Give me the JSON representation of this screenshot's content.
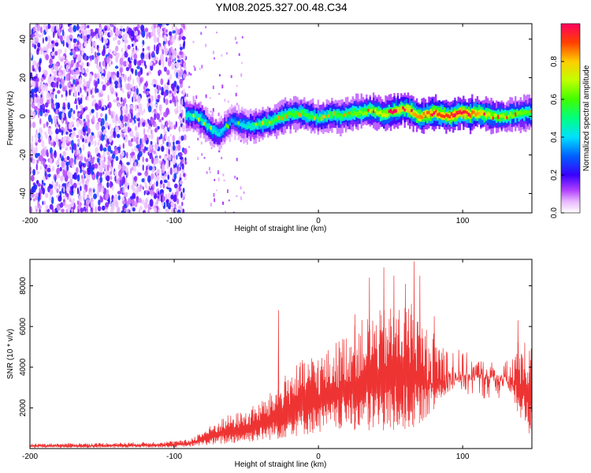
{
  "title": "YM08.2025.327.00.48.C34",
  "chart_data": [
    {
      "type": "heatmap",
      "xlabel": "Height of straight line (km)",
      "ylabel": "Frequency (Hz)",
      "xlim": [
        -200,
        148
      ],
      "ylim": [
        -50,
        48
      ],
      "xticks": [
        -200,
        -100,
        0,
        100
      ],
      "yticks": [
        -40,
        -20,
        0,
        20,
        40
      ],
      "noise_region_x": [
        -200,
        -92
      ],
      "colorbar": {
        "label": "Normalized spectral amplitude",
        "range": [
          0,
          1
        ],
        "ticks": [
          "0.0",
          "0.2",
          "0.4",
          "0.6",
          "0.8"
        ]
      },
      "ridge_center_freq": [
        {
          "x": -92,
          "f": 1
        },
        {
          "x": -85,
          "f": 0
        },
        {
          "x": -80,
          "f": -3
        },
        {
          "x": -75,
          "f": -7
        },
        {
          "x": -70,
          "f": -9
        },
        {
          "x": -65,
          "f": -6
        },
        {
          "x": -60,
          "f": -2
        },
        {
          "x": -55,
          "f": -4
        },
        {
          "x": -50,
          "f": -5
        },
        {
          "x": -45,
          "f": -5
        },
        {
          "x": -40,
          "f": -4
        },
        {
          "x": -35,
          "f": -3
        },
        {
          "x": -30,
          "f": -2
        },
        {
          "x": -25,
          "f": 0
        },
        {
          "x": -20,
          "f": 1
        },
        {
          "x": -15,
          "f": 2
        },
        {
          "x": -10,
          "f": 1
        },
        {
          "x": -5,
          "f": 0
        },
        {
          "x": 0,
          "f": -1
        },
        {
          "x": 5,
          "f": 0
        },
        {
          "x": 10,
          "f": 1
        },
        {
          "x": 15,
          "f": 0
        },
        {
          "x": 20,
          "f": 1
        },
        {
          "x": 25,
          "f": 2
        },
        {
          "x": 30,
          "f": 2
        },
        {
          "x": 35,
          "f": 3
        },
        {
          "x": 40,
          "f": 2
        },
        {
          "x": 45,
          "f": 1
        },
        {
          "x": 50,
          "f": 2
        },
        {
          "x": 55,
          "f": 3
        },
        {
          "x": 60,
          "f": 4
        },
        {
          "x": 65,
          "f": 2
        },
        {
          "x": 70,
          "f": 0
        },
        {
          "x": 75,
          "f": 1
        },
        {
          "x": 80,
          "f": 2
        },
        {
          "x": 85,
          "f": 1
        },
        {
          "x": 90,
          "f": 0
        },
        {
          "x": 95,
          "f": 1
        },
        {
          "x": 100,
          "f": 2
        },
        {
          "x": 105,
          "f": 1
        },
        {
          "x": 110,
          "f": 2
        },
        {
          "x": 115,
          "f": 1
        },
        {
          "x": 120,
          "f": 0
        },
        {
          "x": 125,
          "f": 0
        },
        {
          "x": 130,
          "f": 0
        },
        {
          "x": 135,
          "f": 1
        },
        {
          "x": 140,
          "f": 1
        },
        {
          "x": 148,
          "f": 2
        }
      ],
      "ridge_peak_amplitude": [
        {
          "x": -92,
          "a": 0.45
        },
        {
          "x": -80,
          "a": 0.5
        },
        {
          "x": -60,
          "a": 0.35
        },
        {
          "x": -40,
          "a": 0.55
        },
        {
          "x": -20,
          "a": 0.6
        },
        {
          "x": 0,
          "a": 0.55
        },
        {
          "x": 20,
          "a": 0.6
        },
        {
          "x": 40,
          "a": 0.7
        },
        {
          "x": 60,
          "a": 0.8
        },
        {
          "x": 80,
          "a": 0.9
        },
        {
          "x": 100,
          "a": 0.95
        },
        {
          "x": 120,
          "a": 0.7
        },
        {
          "x": 148,
          "a": 0.6
        }
      ]
    },
    {
      "type": "line",
      "xlabel": "Height of straight line (km)",
      "ylabel": "SNR (10 * v/v)",
      "xlim": [
        -200,
        148
      ],
      "ylim": [
        0,
        9300
      ],
      "xticks": [
        -200,
        -100,
        0,
        100
      ],
      "yticks": [
        2000,
        4000,
        6000,
        8000
      ],
      "color": "#ee3333",
      "envelope": [
        {
          "x": -200,
          "lo": 30,
          "hi": 250
        },
        {
          "x": -150,
          "lo": 40,
          "hi": 280
        },
        {
          "x": -120,
          "lo": 50,
          "hi": 320
        },
        {
          "x": -100,
          "lo": 60,
          "hi": 380
        },
        {
          "x": -90,
          "lo": 80,
          "hi": 450
        },
        {
          "x": -80,
          "lo": 150,
          "hi": 900
        },
        {
          "x": -65,
          "lo": 200,
          "hi": 1600
        },
        {
          "x": -50,
          "lo": 300,
          "hi": 1900
        },
        {
          "x": -35,
          "lo": 400,
          "hi": 2600
        },
        {
          "x": -25,
          "lo": 500,
          "hi": 3500
        },
        {
          "x": -15,
          "lo": 600,
          "hi": 4200
        },
        {
          "x": -5,
          "lo": 700,
          "hi": 4600
        },
        {
          "x": 5,
          "lo": 800,
          "hi": 4800
        },
        {
          "x": 20,
          "lo": 900,
          "hi": 5800
        },
        {
          "x": 35,
          "lo": 900,
          "hi": 6600
        },
        {
          "x": 50,
          "lo": 900,
          "hi": 7000
        },
        {
          "x": 65,
          "lo": 1000,
          "hi": 7300
        },
        {
          "x": 75,
          "lo": 1500,
          "hi": 6000
        },
        {
          "x": 90,
          "lo": 2800,
          "hi": 5200
        },
        {
          "x": 100,
          "lo": 3200,
          "hi": 4800
        },
        {
          "x": 115,
          "lo": 3400,
          "hi": 4400
        },
        {
          "x": 130,
          "lo": 3200,
          "hi": 4300
        },
        {
          "x": 140,
          "lo": 1500,
          "hi": 5500
        },
        {
          "x": 148,
          "lo": 500,
          "hi": 5000
        }
      ],
      "spikes": [
        {
          "x": -28,
          "y": 6800
        },
        {
          "x": 25,
          "y": 6600
        },
        {
          "x": 35,
          "y": 8400
        },
        {
          "x": 45,
          "y": 8900
        },
        {
          "x": 52,
          "y": 8500
        },
        {
          "x": 60,
          "y": 8100
        },
        {
          "x": 66,
          "y": 9200
        },
        {
          "x": 70,
          "y": 8500
        },
        {
          "x": 80,
          "y": 6500
        },
        {
          "x": 138,
          "y": 6300
        },
        {
          "x": 146,
          "y": 4800
        }
      ]
    }
  ]
}
